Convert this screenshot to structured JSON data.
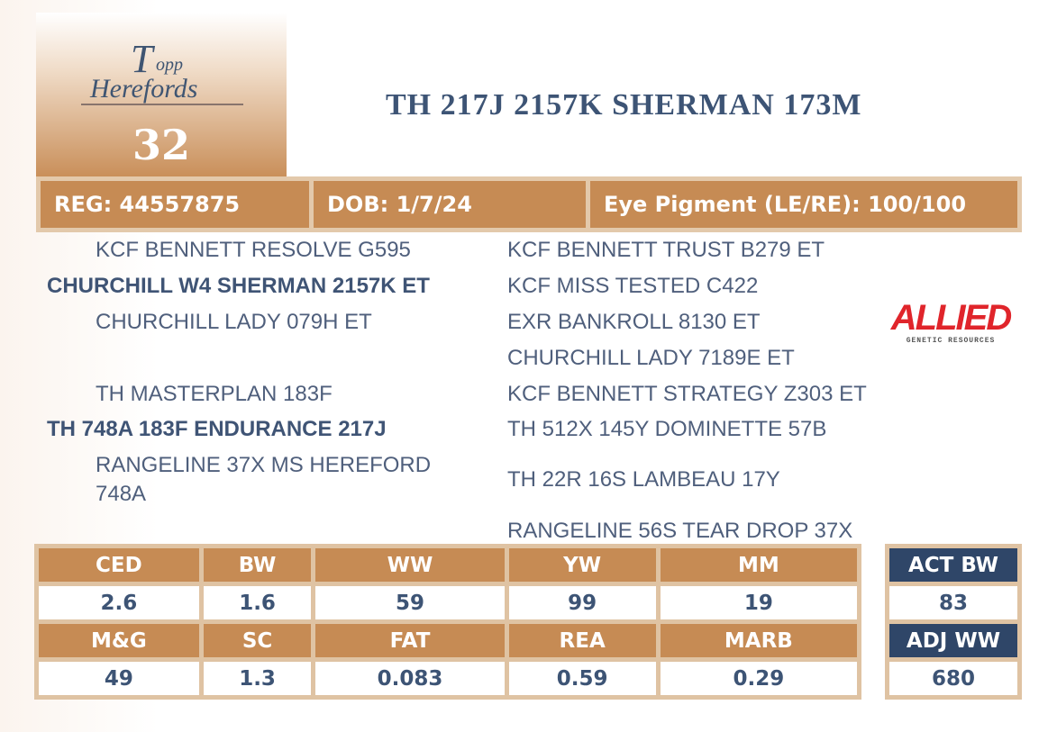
{
  "header": {
    "logo_text": "Topp Herefords",
    "lot_number": "32",
    "title": "TH 217J 2157K SHERMAN 173M"
  },
  "info": {
    "reg": "REG: 44557875",
    "dob": "DOB: 1/7/24",
    "eye": "Eye Pigment (LE/RE): 100/100"
  },
  "pedigree": {
    "sire_sire": "KCF BENNETT RESOLVE G595",
    "sire": "CHURCHILL W4 SHERMAN 2157K ET",
    "sire_dam": "CHURCHILL LADY 079H ET",
    "dam_sire": "TH MASTERPLAN 183F",
    "dam": "TH 748A 183F ENDURANCE 217J",
    "dam_dam_1": "RANGELINE 37X MS HEREFORD",
    "dam_dam_2": "748A",
    "r1": "KCF BENNETT TRUST B279 ET",
    "r2": "KCF MISS TESTED C422",
    "r3": "EXR BANKROLL 8130 ET",
    "r4": "CHURCHILL LADY 7189E ET",
    "r5": "KCF BENNETT STRATEGY Z303 ET",
    "r6": "TH 512X 145Y DOMINETTE 57B",
    "r7": "TH 22R 16S LAMBEAU 17Y",
    "r8": "RANGELINE 56S TEAR DROP 37X"
  },
  "sponsor_logo": {
    "text": "ALLIED",
    "subtext": "GENETIC RESOURCES",
    "color": "#e0252b"
  },
  "epds": {
    "row1_headers": [
      "CED",
      "BW",
      "WW",
      "YW",
      "MM"
    ],
    "row1_values": [
      "2.6",
      "1.6",
      "59",
      "99",
      "19"
    ],
    "row2_headers": [
      "M&G",
      "SC",
      "FAT",
      "REA",
      "MARB"
    ],
    "row2_values": [
      "49",
      "1.3",
      "0.083",
      "0.59",
      "0.29"
    ]
  },
  "actuals": {
    "act_bw_label": "ACT BW",
    "act_bw": "83",
    "adj_ww_label": "ADJ WW",
    "adj_ww": "680"
  },
  "colors": {
    "accent": "#c68b54",
    "navy": "#2f4668",
    "text": "#3d5475",
    "border": "#dfc3a3"
  }
}
